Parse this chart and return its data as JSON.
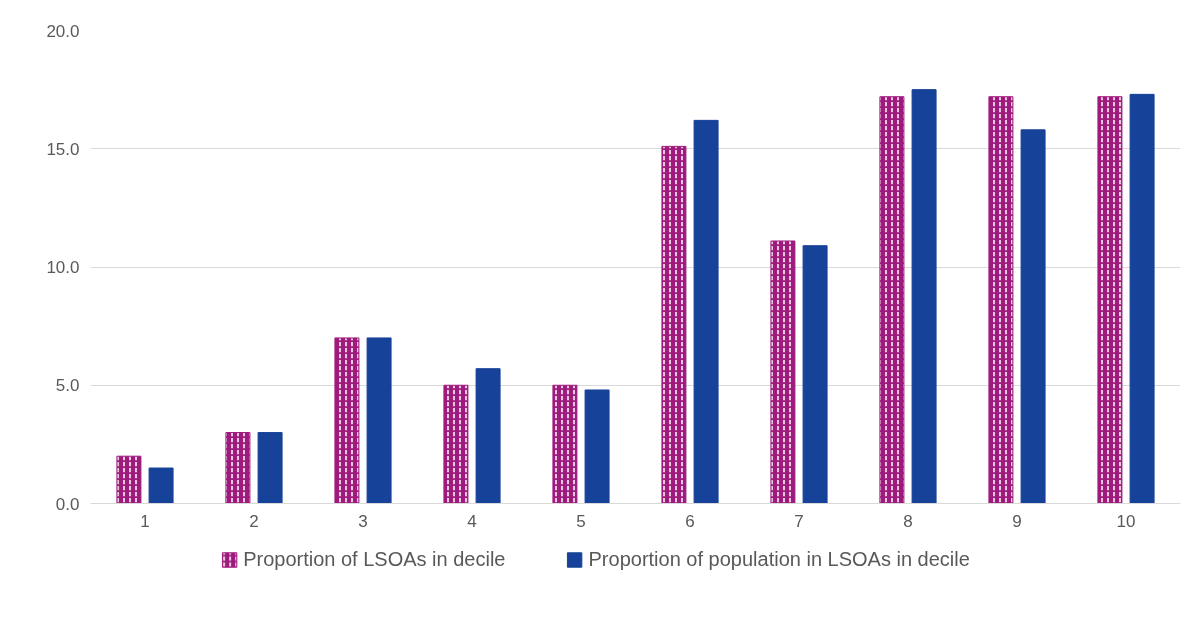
{
  "chart_data": {
    "type": "bar",
    "categories": [
      "1",
      "2",
      "3",
      "4",
      "5",
      "6",
      "7",
      "8",
      "9",
      "10"
    ],
    "series": [
      {
        "name": "Proportion of LSOAs in decile",
        "color": "#9e1a7c",
        "values": [
          2.0,
          3.0,
          7.0,
          5.0,
          5.0,
          15.1,
          11.1,
          17.2,
          17.2,
          17.2
        ]
      },
      {
        "name": "Proportion of population in LSOAs in decile",
        "color": "#174299",
        "values": [
          1.5,
          3.0,
          7.0,
          5.7,
          4.8,
          16.2,
          10.9,
          17.5,
          15.8,
          17.3
        ]
      }
    ],
    "ylim": [
      0,
      20
    ],
    "yticks": [
      {
        "value": 0,
        "label": "0.0"
      },
      {
        "value": 5,
        "label": "5.0"
      },
      {
        "value": 10,
        "label": "10.0"
      },
      {
        "value": 15,
        "label": "15.0"
      },
      {
        "value": 20,
        "label": "20.0"
      }
    ],
    "grid": "y",
    "legend": "bottom"
  }
}
